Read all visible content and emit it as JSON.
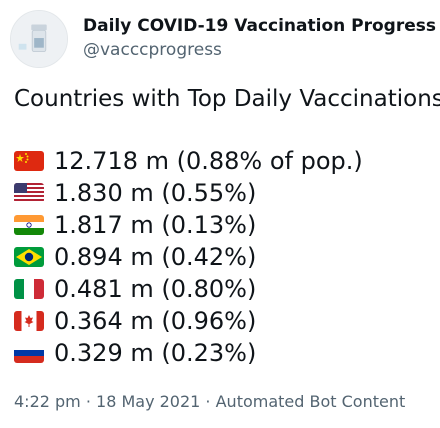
{
  "account": {
    "display_name": "Daily COVID-19 Vaccination Progress",
    "handle": "@vacccprogress"
  },
  "tweet": {
    "title": "Countries with Top Daily Vaccinations",
    "rows": [
      {
        "flag": "china-flag-icon",
        "text": "12.718 m (0.88% of pop.)"
      },
      {
        "flag": "usa-flag-icon",
        "text": "1.830 m (0.55%)"
      },
      {
        "flag": "india-flag-icon",
        "text": "1.817 m (0.13%)"
      },
      {
        "flag": "brazil-flag-icon",
        "text": "0.894 m (0.42%)"
      },
      {
        "flag": "italy-flag-icon",
        "text": "0.481 m (0.80%)"
      },
      {
        "flag": "canada-flag-icon",
        "text": "0.364 m (0.96%)"
      },
      {
        "flag": "russia-flag-icon",
        "text": "0.329 m (0.23%)"
      }
    ],
    "meta": "4:22 pm · 18 May 2021 · Automated Bot Content"
  }
}
